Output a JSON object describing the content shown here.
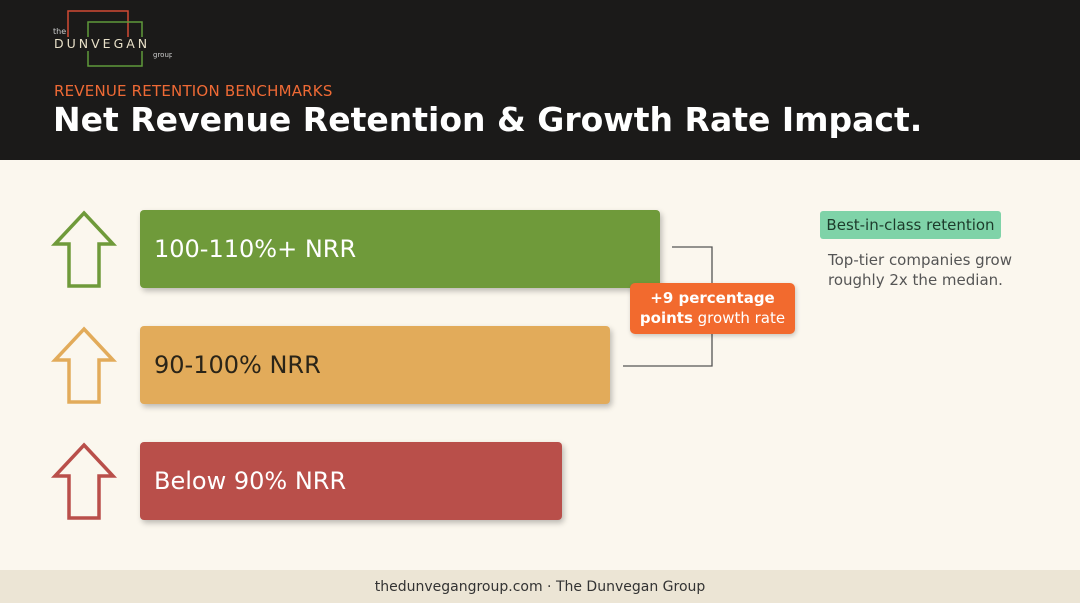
{
  "logo": {
    "top": "the",
    "name": "DUNVEGAN",
    "bottom": "group"
  },
  "header": {
    "subtitle": "REVENUE RETENTION BENCHMARKS",
    "title": "Net Revenue Retention & Growth Rate Impact."
  },
  "tiers": [
    "100-110%+ NRR",
    "90-100% NRR",
    "Below 90% NRR"
  ],
  "callout": {
    "bold": "+9 percentage points",
    "rest": "growth rate"
  },
  "tag": "Best-in-class retention",
  "note": [
    "Top-tier companies grow",
    "roughly 2x the median."
  ],
  "footer": "thedunvegangroup.com · The Dunvegan Group"
}
